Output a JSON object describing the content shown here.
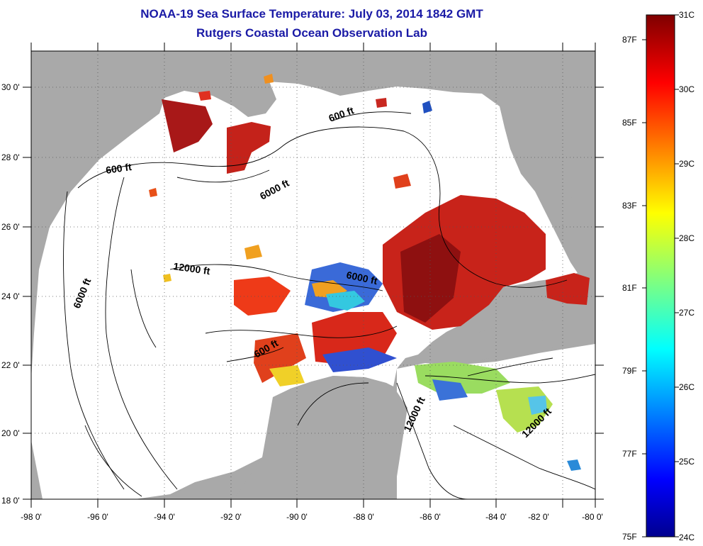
{
  "title": {
    "line1": "NOAA-19 Sea Surface Temperature:  July 03, 2014 1842 GMT",
    "line2": "Rutgers Coastal Ocean Observation Lab"
  },
  "axes": {
    "lon_labels": [
      "-98 0'",
      "-96 0'",
      "-94 0'",
      "-92 0'",
      "-90 0'",
      "-88 0'",
      "-86 0'",
      "-84 0'",
      "-82 0'",
      "-80 0'"
    ],
    "lat_labels": [
      "30 0'",
      "28 0'",
      "26 0'",
      "24 0'",
      "22 0'",
      "20 0'",
      "18 0'"
    ]
  },
  "contour_labels": {
    "c600_west": "600 ft",
    "c600_north": "600 ft",
    "c600_south": "600 ft",
    "c6000_north": "6000 ft",
    "c6000_west": "6000 ft",
    "c6000_center": "6000 ft",
    "c12000_center": "12000 ft",
    "c12000_yucatan": "12000 ft",
    "c12000_east": "12000 ft"
  },
  "colorbar": {
    "celsius": [
      "31C",
      "30C",
      "29C",
      "28C",
      "27C",
      "26C",
      "25C",
      "24C"
    ],
    "fahrenheit": [
      "87F",
      "85F",
      "83F",
      "81F",
      "79F",
      "77F",
      "75F"
    ]
  },
  "colors": {
    "land": "#a9a9a9",
    "ocean": "#ffffff",
    "title": "#1a1aa6"
  }
}
